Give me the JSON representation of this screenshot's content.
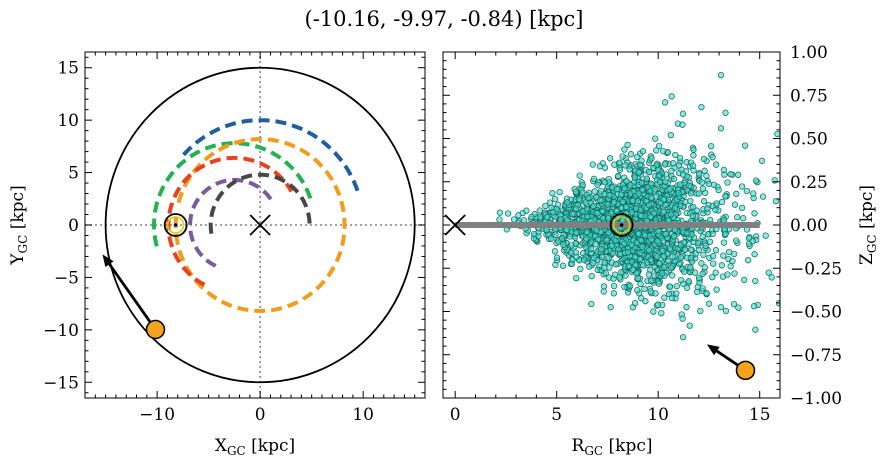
{
  "chart_data": [
    {
      "type": "scatter",
      "panel": "top-down galactic plane",
      "title": "(-10.16, -9.97, -0.84) [kpc]",
      "xlabel": "X",
      "xlabel_sub": "GC",
      "xlabel_unit": " [kpc]",
      "ylabel": "Y",
      "ylabel_sub": "GC",
      "ylabel_unit": " [kpc]",
      "xlim": [
        -17.0,
        16.0
      ],
      "ylim": [
        -16.5,
        16.5
      ],
      "xticks": [
        -10,
        0,
        10
      ],
      "xtick_labels": [
        "−10",
        "0",
        "10"
      ],
      "yticks": [
        -15,
        -10,
        -5,
        0,
        5,
        10,
        15
      ],
      "ytick_labels": [
        "−15",
        "−10",
        "−5",
        "0",
        "5",
        "10",
        "15"
      ],
      "grid": false,
      "galactic_center": [
        0,
        0
      ],
      "boundary_circle_radius": 15,
      "spiral_arms": [
        {
          "color": "#1f5fa0",
          "radius": 10.0,
          "phi_start_deg": 138,
          "phi_end_deg": 18,
          "center": [
            0,
            0
          ]
        },
        {
          "color": "#21b34f",
          "radius": 7.8,
          "phi_start_deg": 195,
          "phi_end_deg": 18,
          "center": [
            -2.5,
            0
          ]
        },
        {
          "color": "#f59b1c",
          "radius": 8.2,
          "phi_start_deg": 165,
          "phi_end_deg": 175,
          "center": [
            0,
            0
          ]
        },
        {
          "color": "#e8421c",
          "radius": 6.4,
          "phi_start_deg": 243,
          "phi_end_deg": 30,
          "center": [
            -2.5,
            0
          ]
        },
        {
          "color": "#7a5c9c",
          "radius": 4.3,
          "phi_start_deg": 245,
          "phi_end_deg": 30,
          "center": [
            -2.5,
            0
          ]
        },
        {
          "color": "#474747",
          "radius": 4.8,
          "phi_start_deg": 190,
          "phi_end_deg": 355,
          "center": [
            0,
            0
          ]
        }
      ],
      "sun_position": [
        -8.2,
        0.0
      ],
      "object_position": [
        -10.16,
        -9.97
      ],
      "object_velocity_arrow_to": [
        -15.3,
        -2.8
      ]
    },
    {
      "type": "scatter",
      "panel": "side view",
      "xlabel": "R",
      "xlabel_sub": "GC",
      "xlabel_unit": " [kpc]",
      "ylabel": "Z",
      "ylabel_sub": "GC",
      "ylabel_unit": " [kpc]",
      "xlim": [
        -0.6,
        16.0
      ],
      "ylim": [
        -1.0,
        1.0
      ],
      "xticks": [
        0,
        5,
        10,
        15
      ],
      "xtick_labels": [
        "0",
        "5",
        "10",
        "15"
      ],
      "yticks": [
        1.0,
        0.75,
        0.5,
        0.25,
        0.0,
        -0.25,
        -0.5,
        -0.75,
        -1.0
      ],
      "ytick_labels": [
        "1.00",
        "0.75",
        "0.50",
        "0.25",
        "0.00",
        "−0.25",
        "−0.50",
        "−0.75",
        "−1.00"
      ],
      "yaxis_side": "right",
      "grid": false,
      "disk_line": {
        "x": [
          0,
          15
        ],
        "z": 0.0,
        "color": "#808080"
      },
      "galactic_center": [
        0,
        0
      ],
      "sun_position": [
        8.2,
        0.0
      ],
      "object_position": [
        14.3,
        -0.84
      ],
      "object_velocity_arrow_to": [
        12.4,
        -0.69
      ],
      "star_cloud": {
        "color": "#40e0d0",
        "count": 2000,
        "r_center": 8.2,
        "r_range": [
          1.5,
          16.0
        ],
        "z_spread_grows_with_r": true,
        "z_range": [
          -1.0,
          1.0
        ]
      }
    }
  ]
}
